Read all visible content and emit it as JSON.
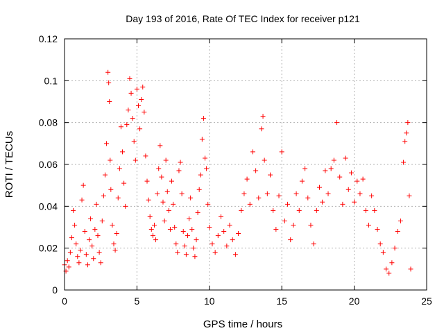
{
  "chart_data": {
    "type": "scatter",
    "title": "Day 193 of 2016, Rate Of TEC Index for receiver p121",
    "xlabel": "GPS time / hours",
    "ylabel": "ROTI / TECUs",
    "xlim": [
      0,
      25
    ],
    "ylim": [
      0,
      0.12
    ],
    "x_ticks": [
      0,
      5,
      10,
      15,
      20,
      25
    ],
    "x_tick_labels": [
      "0",
      "5",
      "10",
      "15",
      "20",
      "25"
    ],
    "y_ticks": [
      0,
      0.02,
      0.04,
      0.06,
      0.08,
      0.1,
      0.12
    ],
    "y_tick_labels": [
      "0",
      "0.02",
      "0.04",
      "0.06",
      "0.08",
      "0.1",
      "0.12"
    ],
    "grid": true,
    "marker": "+",
    "series": [
      {
        "name": "ROTI",
        "color": "#ff0000",
        "points": [
          [
            0.0,
            0.012
          ],
          [
            0.1,
            0.009
          ],
          [
            0.2,
            0.014
          ],
          [
            0.3,
            0.011
          ],
          [
            0.4,
            0.018
          ],
          [
            0.5,
            0.025
          ],
          [
            0.6,
            0.038
          ],
          [
            0.7,
            0.031
          ],
          [
            0.8,
            0.022
          ],
          [
            0.9,
            0.016
          ],
          [
            1.0,
            0.013
          ],
          [
            1.1,
            0.019
          ],
          [
            1.2,
            0.043
          ],
          [
            1.3,
            0.05
          ],
          [
            1.4,
            0.028
          ],
          [
            1.5,
            0.017
          ],
          [
            1.6,
            0.012
          ],
          [
            1.7,
            0.024
          ],
          [
            1.8,
            0.034
          ],
          [
            1.9,
            0.021
          ],
          [
            2.0,
            0.015
          ],
          [
            2.1,
            0.029
          ],
          [
            2.2,
            0.041
          ],
          [
            2.3,
            0.026
          ],
          [
            2.4,
            0.018
          ],
          [
            2.5,
            0.013
          ],
          [
            2.6,
            0.033
          ],
          [
            2.7,
            0.045
          ],
          [
            2.8,
            0.055
          ],
          [
            2.9,
            0.07
          ],
          [
            3.0,
            0.104
          ],
          [
            3.05,
            0.099
          ],
          [
            3.1,
            0.09
          ],
          [
            3.15,
            0.062
          ],
          [
            3.2,
            0.048
          ],
          [
            3.3,
            0.031
          ],
          [
            3.4,
            0.022
          ],
          [
            3.5,
            0.019
          ],
          [
            3.6,
            0.027
          ],
          [
            3.7,
            0.044
          ],
          [
            3.8,
            0.058
          ],
          [
            3.9,
            0.078
          ],
          [
            4.0,
            0.066
          ],
          [
            4.1,
            0.051
          ],
          [
            4.2,
            0.04
          ],
          [
            4.3,
            0.079
          ],
          [
            4.4,
            0.086
          ],
          [
            4.5,
            0.101
          ],
          [
            4.6,
            0.094
          ],
          [
            4.7,
            0.082
          ],
          [
            4.8,
            0.071
          ],
          [
            4.9,
            0.062
          ],
          [
            5.0,
            0.096
          ],
          [
            5.1,
            0.088
          ],
          [
            5.2,
            0.077
          ],
          [
            5.3,
            0.091
          ],
          [
            5.4,
            0.097
          ],
          [
            5.5,
            0.085
          ],
          [
            5.6,
            0.064
          ],
          [
            5.7,
            0.052
          ],
          [
            5.8,
            0.043
          ],
          [
            5.9,
            0.035
          ],
          [
            6.0,
            0.029
          ],
          [
            6.1,
            0.026
          ],
          [
            6.2,
            0.031
          ],
          [
            6.3,
            0.024
          ],
          [
            6.4,
            0.046
          ],
          [
            6.5,
            0.058
          ],
          [
            6.6,
            0.069
          ],
          [
            6.7,
            0.054
          ],
          [
            6.8,
            0.042
          ],
          [
            6.9,
            0.033
          ],
          [
            7.0,
            0.062
          ],
          [
            7.1,
            0.047
          ],
          [
            7.2,
            0.038
          ],
          [
            7.3,
            0.029
          ],
          [
            7.4,
            0.052
          ],
          [
            7.5,
            0.041
          ],
          [
            7.6,
            0.03
          ],
          [
            7.7,
            0.022
          ],
          [
            7.8,
            0.018
          ],
          [
            7.9,
            0.057
          ],
          [
            8.0,
            0.061
          ],
          [
            8.1,
            0.046
          ],
          [
            8.2,
            0.028
          ],
          [
            8.3,
            0.021
          ],
          [
            8.4,
            0.017
          ],
          [
            8.5,
            0.026
          ],
          [
            8.6,
            0.034
          ],
          [
            8.7,
            0.044
          ],
          [
            8.8,
            0.029
          ],
          [
            8.9,
            0.02
          ],
          [
            9.0,
            0.016
          ],
          [
            9.1,
            0.024
          ],
          [
            9.2,
            0.037
          ],
          [
            9.3,
            0.048
          ],
          [
            9.4,
            0.055
          ],
          [
            9.5,
            0.072
          ],
          [
            9.6,
            0.082
          ],
          [
            9.7,
            0.063
          ],
          [
            9.8,
            0.058
          ],
          [
            9.9,
            0.041
          ],
          [
            10.0,
            0.03
          ],
          [
            10.2,
            0.022
          ],
          [
            10.4,
            0.018
          ],
          [
            10.6,
            0.026
          ],
          [
            10.8,
            0.035
          ],
          [
            11.0,
            0.028
          ],
          [
            11.2,
            0.021
          ],
          [
            11.4,
            0.031
          ],
          [
            11.6,
            0.024
          ],
          [
            11.8,
            0.017
          ],
          [
            12.0,
            0.027
          ],
          [
            12.2,
            0.038
          ],
          [
            12.4,
            0.046
          ],
          [
            12.6,
            0.053
          ],
          [
            12.8,
            0.041
          ],
          [
            13.0,
            0.066
          ],
          [
            13.2,
            0.057
          ],
          [
            13.4,
            0.044
          ],
          [
            13.6,
            0.077
          ],
          [
            13.7,
            0.083
          ],
          [
            13.8,
            0.062
          ],
          [
            14.0,
            0.046
          ],
          [
            14.2,
            0.055
          ],
          [
            14.4,
            0.038
          ],
          [
            14.6,
            0.029
          ],
          [
            14.8,
            0.045
          ],
          [
            15.0,
            0.066
          ],
          [
            15.2,
            0.033
          ],
          [
            15.4,
            0.041
          ],
          [
            15.6,
            0.024
          ],
          [
            15.8,
            0.031
          ],
          [
            16.0,
            0.046
          ],
          [
            16.2,
            0.038
          ],
          [
            16.4,
            0.052
          ],
          [
            16.6,
            0.058
          ],
          [
            16.8,
            0.044
          ],
          [
            17.0,
            0.031
          ],
          [
            17.2,
            0.022
          ],
          [
            17.4,
            0.038
          ],
          [
            17.6,
            0.049
          ],
          [
            17.8,
            0.042
          ],
          [
            18.0,
            0.057
          ],
          [
            18.2,
            0.046
          ],
          [
            18.4,
            0.058
          ],
          [
            18.6,
            0.062
          ],
          [
            18.8,
            0.08
          ],
          [
            19.0,
            0.054
          ],
          [
            19.2,
            0.041
          ],
          [
            19.4,
            0.063
          ],
          [
            19.6,
            0.048
          ],
          [
            19.8,
            0.056
          ],
          [
            20.0,
            0.042
          ],
          [
            20.2,
            0.052
          ],
          [
            20.4,
            0.046
          ],
          [
            20.6,
            0.053
          ],
          [
            20.8,
            0.038
          ],
          [
            21.0,
            0.031
          ],
          [
            21.2,
            0.045
          ],
          [
            21.4,
            0.038
          ],
          [
            21.6,
            0.029
          ],
          [
            21.8,
            0.022
          ],
          [
            22.0,
            0.018
          ],
          [
            22.2,
            0.01
          ],
          [
            22.4,
            0.008
          ],
          [
            22.6,
            0.013
          ],
          [
            22.8,
            0.02
          ],
          [
            23.0,
            0.028
          ],
          [
            23.2,
            0.033
          ],
          [
            23.4,
            0.061
          ],
          [
            23.5,
            0.071
          ],
          [
            23.6,
            0.075
          ],
          [
            23.7,
            0.08
          ],
          [
            23.8,
            0.045
          ],
          [
            23.9,
            0.01
          ]
        ]
      }
    ]
  }
}
